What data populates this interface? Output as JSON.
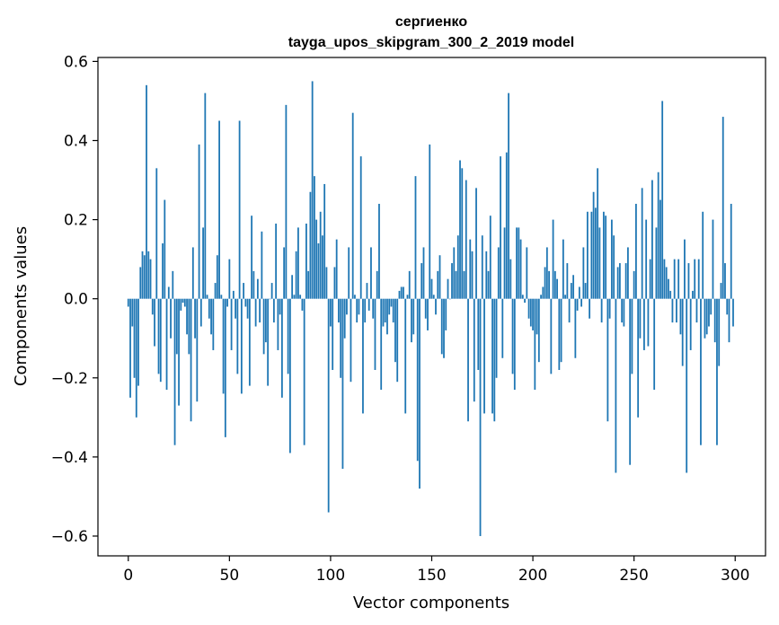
{
  "chart_data": {
    "type": "bar",
    "title_line1": "сергиенко",
    "title_line2": "tayga_upos_skipgram_300_2_2019 model",
    "xlabel": "Vector components",
    "ylabel": "Components values",
    "xlim": [
      -15,
      315
    ],
    "ylim": [
      -0.65,
      0.61
    ],
    "xticks": [
      0,
      50,
      100,
      150,
      200,
      250,
      300
    ],
    "yticks": [
      -0.6,
      -0.4,
      -0.2,
      0.0,
      0.2,
      0.4,
      0.6
    ],
    "ytick_labels": [
      "−0.6",
      "−0.4",
      "−0.2",
      "0.0",
      "0.2",
      "0.4",
      "0.6"
    ],
    "bar_color": "#1f77b4",
    "values": [
      -0.02,
      -0.25,
      -0.07,
      -0.2,
      -0.3,
      -0.22,
      0.08,
      0.12,
      0.11,
      0.54,
      0.12,
      0.1,
      -0.04,
      -0.12,
      0.33,
      -0.19,
      -0.21,
      0.14,
      0.25,
      -0.23,
      0.03,
      -0.1,
      0.07,
      -0.37,
      -0.14,
      -0.27,
      -0.03,
      -0.01,
      -0.02,
      -0.09,
      -0.14,
      -0.31,
      0.13,
      -0.1,
      -0.26,
      0.39,
      -0.07,
      0.18,
      0.52,
      0.01,
      -0.05,
      -0.09,
      -0.13,
      0.04,
      0.11,
      0.45,
      0.01,
      -0.24,
      -0.35,
      -0.02,
      0.1,
      -0.13,
      0.02,
      -0.05,
      -0.19,
      0.45,
      -0.24,
      0.04,
      -0.02,
      -0.05,
      -0.22,
      0.21,
      0.07,
      -0.07,
      0.05,
      -0.06,
      0.17,
      -0.14,
      -0.11,
      -0.22,
      0.0,
      0.04,
      -0.06,
      0.19,
      -0.13,
      -0.04,
      -0.25,
      0.13,
      0.49,
      -0.19,
      -0.39,
      0.06,
      0.01,
      0.12,
      0.18,
      0.01,
      -0.03,
      -0.37,
      0.19,
      0.07,
      0.27,
      0.55,
      0.31,
      0.2,
      0.14,
      0.22,
      0.16,
      0.29,
      0.08,
      -0.54,
      -0.07,
      -0.18,
      0.08,
      0.15,
      -0.06,
      -0.2,
      -0.43,
      -0.1,
      -0.04,
      0.13,
      -0.21,
      0.47,
      0.01,
      -0.06,
      -0.04,
      0.36,
      -0.29,
      -0.06,
      0.04,
      -0.03,
      0.13,
      -0.05,
      -0.18,
      0.07,
      0.24,
      -0.23,
      -0.07,
      -0.06,
      -0.09,
      -0.04,
      -0.02,
      -0.06,
      -0.16,
      -0.21,
      0.02,
      0.03,
      0.03,
      -0.29,
      0.01,
      0.07,
      -0.11,
      -0.09,
      0.31,
      -0.41,
      -0.48,
      0.09,
      0.13,
      -0.05,
      -0.08,
      0.39,
      0.05,
      0.01,
      -0.04,
      0.07,
      0.11,
      -0.14,
      -0.15,
      -0.08,
      0.05,
      0.0,
      0.09,
      0.13,
      0.07,
      0.16,
      0.35,
      0.33,
      0.07,
      0.3,
      -0.31,
      0.15,
      0.12,
      -0.26,
      0.28,
      -0.18,
      -0.6,
      0.16,
      -0.29,
      0.12,
      0.07,
      0.21,
      -0.29,
      -0.31,
      -0.2,
      0.13,
      0.36,
      -0.15,
      0.18,
      0.37,
      0.52,
      0.1,
      -0.19,
      -0.23,
      0.18,
      0.18,
      0.15,
      0.01,
      -0.01,
      0.13,
      -0.05,
      -0.07,
      -0.08,
      -0.23,
      -0.09,
      -0.16,
      0.01,
      0.03,
      0.08,
      0.13,
      0.07,
      -0.19,
      0.2,
      0.07,
      0.05,
      -0.18,
      -0.16,
      0.15,
      0.01,
      0.09,
      -0.06,
      0.04,
      0.06,
      -0.15,
      -0.03,
      0.03,
      -0.02,
      0.13,
      0.04,
      0.22,
      -0.05,
      0.22,
      0.27,
      0.23,
      0.33,
      0.18,
      -0.06,
      0.22,
      0.21,
      -0.31,
      -0.05,
      0.2,
      0.16,
      -0.44,
      0.08,
      0.09,
      -0.06,
      -0.07,
      0.09,
      0.13,
      -0.42,
      -0.19,
      0.07,
      0.24,
      -0.3,
      -0.1,
      0.28,
      -0.13,
      0.2,
      -0.12,
      0.1,
      0.3,
      -0.23,
      0.18,
      0.32,
      0.25,
      0.5,
      0.1,
      0.08,
      0.05,
      0.02,
      -0.06,
      0.1,
      -0.06,
      0.1,
      -0.09,
      -0.17,
      0.15,
      -0.44,
      0.09,
      -0.13,
      0.02,
      0.1,
      -0.06,
      0.1,
      -0.37,
      0.22,
      -0.1,
      -0.09,
      -0.07,
      -0.04,
      0.2,
      -0.11,
      -0.37,
      -0.17,
      0.04,
      0.46,
      0.09,
      -0.04,
      -0.11,
      0.24,
      -0.07
    ]
  }
}
